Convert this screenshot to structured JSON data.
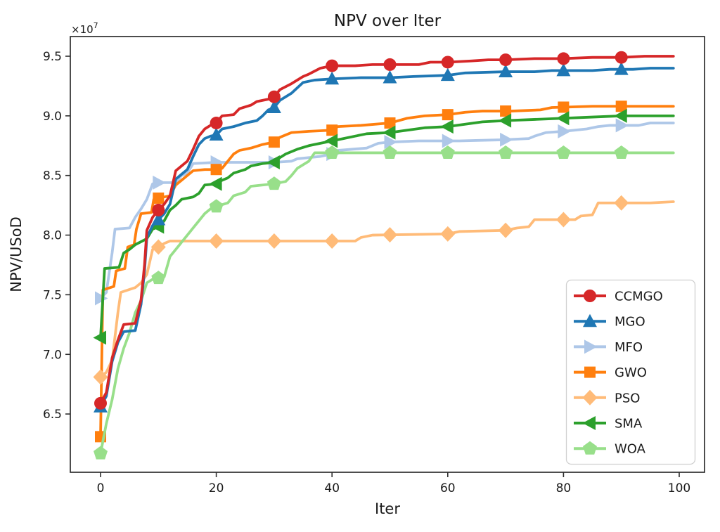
{
  "figure": {
    "title": "NPV over Iter",
    "xlabel": "Iter",
    "ylabel": "NPV/USoD",
    "offset_text": "×10",
    "offset_exponent": "7",
    "background": "#ffffff",
    "axis_color": "#2e2e2e",
    "x_tick_labels": [
      "0",
      "20",
      "40",
      "60",
      "80",
      "100"
    ],
    "y_tick_labels": [
      "6.5",
      "7.0",
      "7.5",
      "8.0",
      "8.5",
      "9.0",
      "9.5"
    ]
  },
  "legend": {
    "position": "lower right",
    "border_color": "#cfcfcf"
  },
  "chart_data": {
    "type": "line",
    "title": "NPV over Iter",
    "xlabel": "Iter",
    "ylabel": "NPV/USoD",
    "y_unit_note": "values in units of 1e7 (axis offset text ×10^7)",
    "xlim": [
      -5.2,
      104.5
    ],
    "ylim": [
      6.0,
      9.67
    ],
    "x_tick_values": [
      0,
      20,
      40,
      60,
      80,
      100
    ],
    "y_tick_values": [
      6.5,
      7.0,
      7.5,
      8.0,
      8.5,
      9.0,
      9.5
    ],
    "grid": false,
    "legend_position": "lower right",
    "marker_every": 10,
    "marker_iters": [
      0,
      10,
      20,
      30,
      40,
      50,
      60,
      70,
      80,
      90
    ],
    "series": [
      {
        "name": "CCMGO",
        "color": "#d62728",
        "marker": "circle",
        "points": [
          [
            0,
            6.59
          ],
          [
            1,
            6.68
          ],
          [
            2,
            6.97
          ],
          [
            3,
            7.12
          ],
          [
            4,
            7.25
          ],
          [
            6,
            7.26
          ],
          [
            7,
            7.46
          ],
          [
            7.6,
            7.75
          ],
          [
            8,
            8.04
          ],
          [
            9,
            8.15
          ],
          [
            10,
            8.21
          ],
          [
            11,
            8.26
          ],
          [
            12,
            8.33
          ],
          [
            13,
            8.54
          ],
          [
            15,
            8.62
          ],
          [
            16,
            8.72
          ],
          [
            17,
            8.83
          ],
          [
            18,
            8.89
          ],
          [
            19,
            8.92
          ],
          [
            20,
            8.94
          ],
          [
            21,
            9.0
          ],
          [
            23,
            9.01
          ],
          [
            24,
            9.06
          ],
          [
            26,
            9.09
          ],
          [
            27,
            9.12
          ],
          [
            29,
            9.14
          ],
          [
            30,
            9.16
          ],
          [
            31,
            9.22
          ],
          [
            33,
            9.27
          ],
          [
            35,
            9.33
          ],
          [
            36,
            9.35
          ],
          [
            38,
            9.4
          ],
          [
            40,
            9.42
          ],
          [
            44,
            9.42
          ],
          [
            47,
            9.43
          ],
          [
            55,
            9.43
          ],
          [
            57,
            9.45
          ],
          [
            60,
            9.45
          ],
          [
            64,
            9.46
          ],
          [
            67,
            9.47
          ],
          [
            70,
            9.47
          ],
          [
            75,
            9.48
          ],
          [
            80,
            9.48
          ],
          [
            85,
            9.49
          ],
          [
            90,
            9.49
          ],
          [
            94,
            9.5
          ],
          [
            99,
            9.5
          ]
        ]
      },
      {
        "name": "MGO",
        "color": "#1f77b4",
        "marker": "triangle-up",
        "points": [
          [
            0,
            6.56
          ],
          [
            1,
            6.65
          ],
          [
            2,
            6.94
          ],
          [
            3,
            7.1
          ],
          [
            4,
            7.19
          ],
          [
            6,
            7.2
          ],
          [
            7,
            7.42
          ],
          [
            7.6,
            7.7
          ],
          [
            8,
            7.98
          ],
          [
            9,
            8.08
          ],
          [
            10,
            8.13
          ],
          [
            11,
            8.18
          ],
          [
            12,
            8.26
          ],
          [
            13,
            8.47
          ],
          [
            15,
            8.55
          ],
          [
            16,
            8.66
          ],
          [
            17,
            8.76
          ],
          [
            18,
            8.81
          ],
          [
            19,
            8.83
          ],
          [
            20,
            8.84
          ],
          [
            21,
            8.89
          ],
          [
            23,
            8.91
          ],
          [
            25,
            8.94
          ],
          [
            27,
            8.96
          ],
          [
            28,
            9.0
          ],
          [
            29,
            9.05
          ],
          [
            30,
            9.07
          ],
          [
            31,
            9.13
          ],
          [
            33,
            9.19
          ],
          [
            35,
            9.28
          ],
          [
            37,
            9.3
          ],
          [
            40,
            9.31
          ],
          [
            45,
            9.32
          ],
          [
            50,
            9.32
          ],
          [
            54,
            9.33
          ],
          [
            60,
            9.34
          ],
          [
            63,
            9.36
          ],
          [
            70,
            9.37
          ],
          [
            75,
            9.37
          ],
          [
            78,
            9.38
          ],
          [
            85,
            9.38
          ],
          [
            88,
            9.39
          ],
          [
            92,
            9.39
          ],
          [
            95,
            9.4
          ],
          [
            99,
            9.4
          ]
        ]
      },
      {
        "name": "MFO",
        "color": "#aec7e8",
        "marker": "triangle-right",
        "points": [
          [
            0,
            7.47
          ],
          [
            1,
            7.52
          ],
          [
            2,
            7.85
          ],
          [
            2.5,
            8.05
          ],
          [
            5,
            8.06
          ],
          [
            6,
            8.15
          ],
          [
            7,
            8.22
          ],
          [
            8,
            8.3
          ],
          [
            9,
            8.43
          ],
          [
            10,
            8.44
          ],
          [
            13,
            8.44
          ],
          [
            14,
            8.5
          ],
          [
            15,
            8.52
          ],
          [
            16,
            8.6
          ],
          [
            20,
            8.61
          ],
          [
            30,
            8.61
          ],
          [
            33,
            8.62
          ],
          [
            34,
            8.64
          ],
          [
            36,
            8.65
          ],
          [
            38,
            8.66
          ],
          [
            40,
            8.68
          ],
          [
            41,
            8.71
          ],
          [
            46,
            8.73
          ],
          [
            48,
            8.77
          ],
          [
            50,
            8.78
          ],
          [
            55,
            8.79
          ],
          [
            62,
            8.79
          ],
          [
            70,
            8.8
          ],
          [
            74,
            8.81
          ],
          [
            75,
            8.83
          ],
          [
            77,
            8.86
          ],
          [
            80,
            8.87
          ],
          [
            84,
            8.89
          ],
          [
            86,
            8.91
          ],
          [
            88,
            8.92
          ],
          [
            93,
            8.92
          ],
          [
            95,
            8.94
          ],
          [
            99,
            8.94
          ]
        ]
      },
      {
        "name": "GWO",
        "color": "#ff7f0e",
        "marker": "square",
        "points": [
          [
            0,
            6.31
          ],
          [
            0.4,
            7.54
          ],
          [
            2.3,
            7.57
          ],
          [
            2.7,
            7.7
          ],
          [
            4.2,
            7.72
          ],
          [
            4.7,
            7.9
          ],
          [
            5.8,
            7.92
          ],
          [
            6.2,
            8.05
          ],
          [
            7,
            8.18
          ],
          [
            8.8,
            8.19
          ],
          [
            9.2,
            8.3
          ],
          [
            10,
            8.31
          ],
          [
            12,
            8.33
          ],
          [
            13,
            8.42
          ],
          [
            14,
            8.46
          ],
          [
            15,
            8.5
          ],
          [
            16,
            8.54
          ],
          [
            18,
            8.55
          ],
          [
            20,
            8.55
          ],
          [
            21,
            8.56
          ],
          [
            22,
            8.62
          ],
          [
            23,
            8.68
          ],
          [
            24,
            8.71
          ],
          [
            26,
            8.73
          ],
          [
            28,
            8.76
          ],
          [
            30,
            8.78
          ],
          [
            31,
            8.82
          ],
          [
            33,
            8.86
          ],
          [
            36,
            8.87
          ],
          [
            40,
            8.88
          ],
          [
            41,
            8.91
          ],
          [
            45,
            8.92
          ],
          [
            50,
            8.94
          ],
          [
            53,
            8.98
          ],
          [
            56,
            9.0
          ],
          [
            60,
            9.01
          ],
          [
            63,
            9.03
          ],
          [
            66,
            9.04
          ],
          [
            71,
            9.04
          ],
          [
            76,
            9.05
          ],
          [
            78,
            9.07
          ],
          [
            85,
            9.08
          ],
          [
            99,
            9.08
          ]
        ]
      },
      {
        "name": "PSO",
        "color": "#ffbb78",
        "marker": "diamond",
        "points": [
          [
            0,
            6.81
          ],
          [
            1,
            6.85
          ],
          [
            2,
            6.95
          ],
          [
            3,
            7.35
          ],
          [
            3.5,
            7.52
          ],
          [
            6,
            7.56
          ],
          [
            7,
            7.6
          ],
          [
            8,
            7.67
          ],
          [
            9,
            7.88
          ],
          [
            10,
            7.9
          ],
          [
            11,
            7.93
          ],
          [
            12,
            7.95
          ],
          [
            44,
            7.95
          ],
          [
            45,
            7.98
          ],
          [
            47,
            8.0
          ],
          [
            60,
            8.01
          ],
          [
            62,
            8.03
          ],
          [
            70,
            8.04
          ],
          [
            72,
            8.06
          ],
          [
            74,
            8.07
          ],
          [
            75,
            8.13
          ],
          [
            82,
            8.13
          ],
          [
            83,
            8.16
          ],
          [
            85,
            8.17
          ],
          [
            86,
            8.27
          ],
          [
            95,
            8.27
          ],
          [
            99,
            8.28
          ]
        ]
      },
      {
        "name": "SMA",
        "color": "#2ca02c",
        "marker": "triangle-left",
        "points": [
          [
            0,
            7.14
          ],
          [
            0.7,
            7.72
          ],
          [
            3.2,
            7.73
          ],
          [
            4,
            7.85
          ],
          [
            5,
            7.88
          ],
          [
            6,
            7.92
          ],
          [
            8,
            7.97
          ],
          [
            9,
            8.05
          ],
          [
            10,
            8.07
          ],
          [
            11,
            8.12
          ],
          [
            12,
            8.21
          ],
          [
            13,
            8.25
          ],
          [
            14,
            8.3
          ],
          [
            16,
            8.32
          ],
          [
            17,
            8.35
          ],
          [
            18,
            8.42
          ],
          [
            20,
            8.43
          ],
          [
            21,
            8.46
          ],
          [
            22,
            8.48
          ],
          [
            23,
            8.52
          ],
          [
            25,
            8.55
          ],
          [
            26,
            8.58
          ],
          [
            28,
            8.6
          ],
          [
            30,
            8.61
          ],
          [
            31,
            8.65
          ],
          [
            32,
            8.68
          ],
          [
            34,
            8.72
          ],
          [
            36,
            8.75
          ],
          [
            38,
            8.77
          ],
          [
            40,
            8.79
          ],
          [
            42,
            8.81
          ],
          [
            44,
            8.83
          ],
          [
            46,
            8.85
          ],
          [
            50,
            8.86
          ],
          [
            53,
            8.88
          ],
          [
            56,
            8.9
          ],
          [
            60,
            8.91
          ],
          [
            63,
            8.93
          ],
          [
            66,
            8.95
          ],
          [
            70,
            8.96
          ],
          [
            75,
            8.97
          ],
          [
            80,
            8.98
          ],
          [
            85,
            8.99
          ],
          [
            90,
            9.0
          ],
          [
            99,
            9.0
          ]
        ]
      },
      {
        "name": "WOA",
        "color": "#98df8a",
        "marker": "pentagon",
        "points": [
          [
            0,
            6.17
          ],
          [
            1,
            6.42
          ],
          [
            2,
            6.62
          ],
          [
            3,
            6.88
          ],
          [
            4,
            7.05
          ],
          [
            5,
            7.18
          ],
          [
            6,
            7.35
          ],
          [
            7,
            7.45
          ],
          [
            8,
            7.6
          ],
          [
            9,
            7.63
          ],
          [
            11,
            7.65
          ],
          [
            12,
            7.82
          ],
          [
            13,
            7.88
          ],
          [
            14,
            7.94
          ],
          [
            15,
            8.0
          ],
          [
            16,
            8.06
          ],
          [
            17,
            8.12
          ],
          [
            18,
            8.18
          ],
          [
            19,
            8.22
          ],
          [
            20,
            8.24
          ],
          [
            22,
            8.27
          ],
          [
            23,
            8.33
          ],
          [
            25,
            8.36
          ],
          [
            26,
            8.41
          ],
          [
            30,
            8.43
          ],
          [
            32,
            8.45
          ],
          [
            33,
            8.5
          ],
          [
            34,
            8.56
          ],
          [
            36,
            8.62
          ],
          [
            37,
            8.69
          ],
          [
            99,
            8.69
          ]
        ]
      }
    ]
  }
}
